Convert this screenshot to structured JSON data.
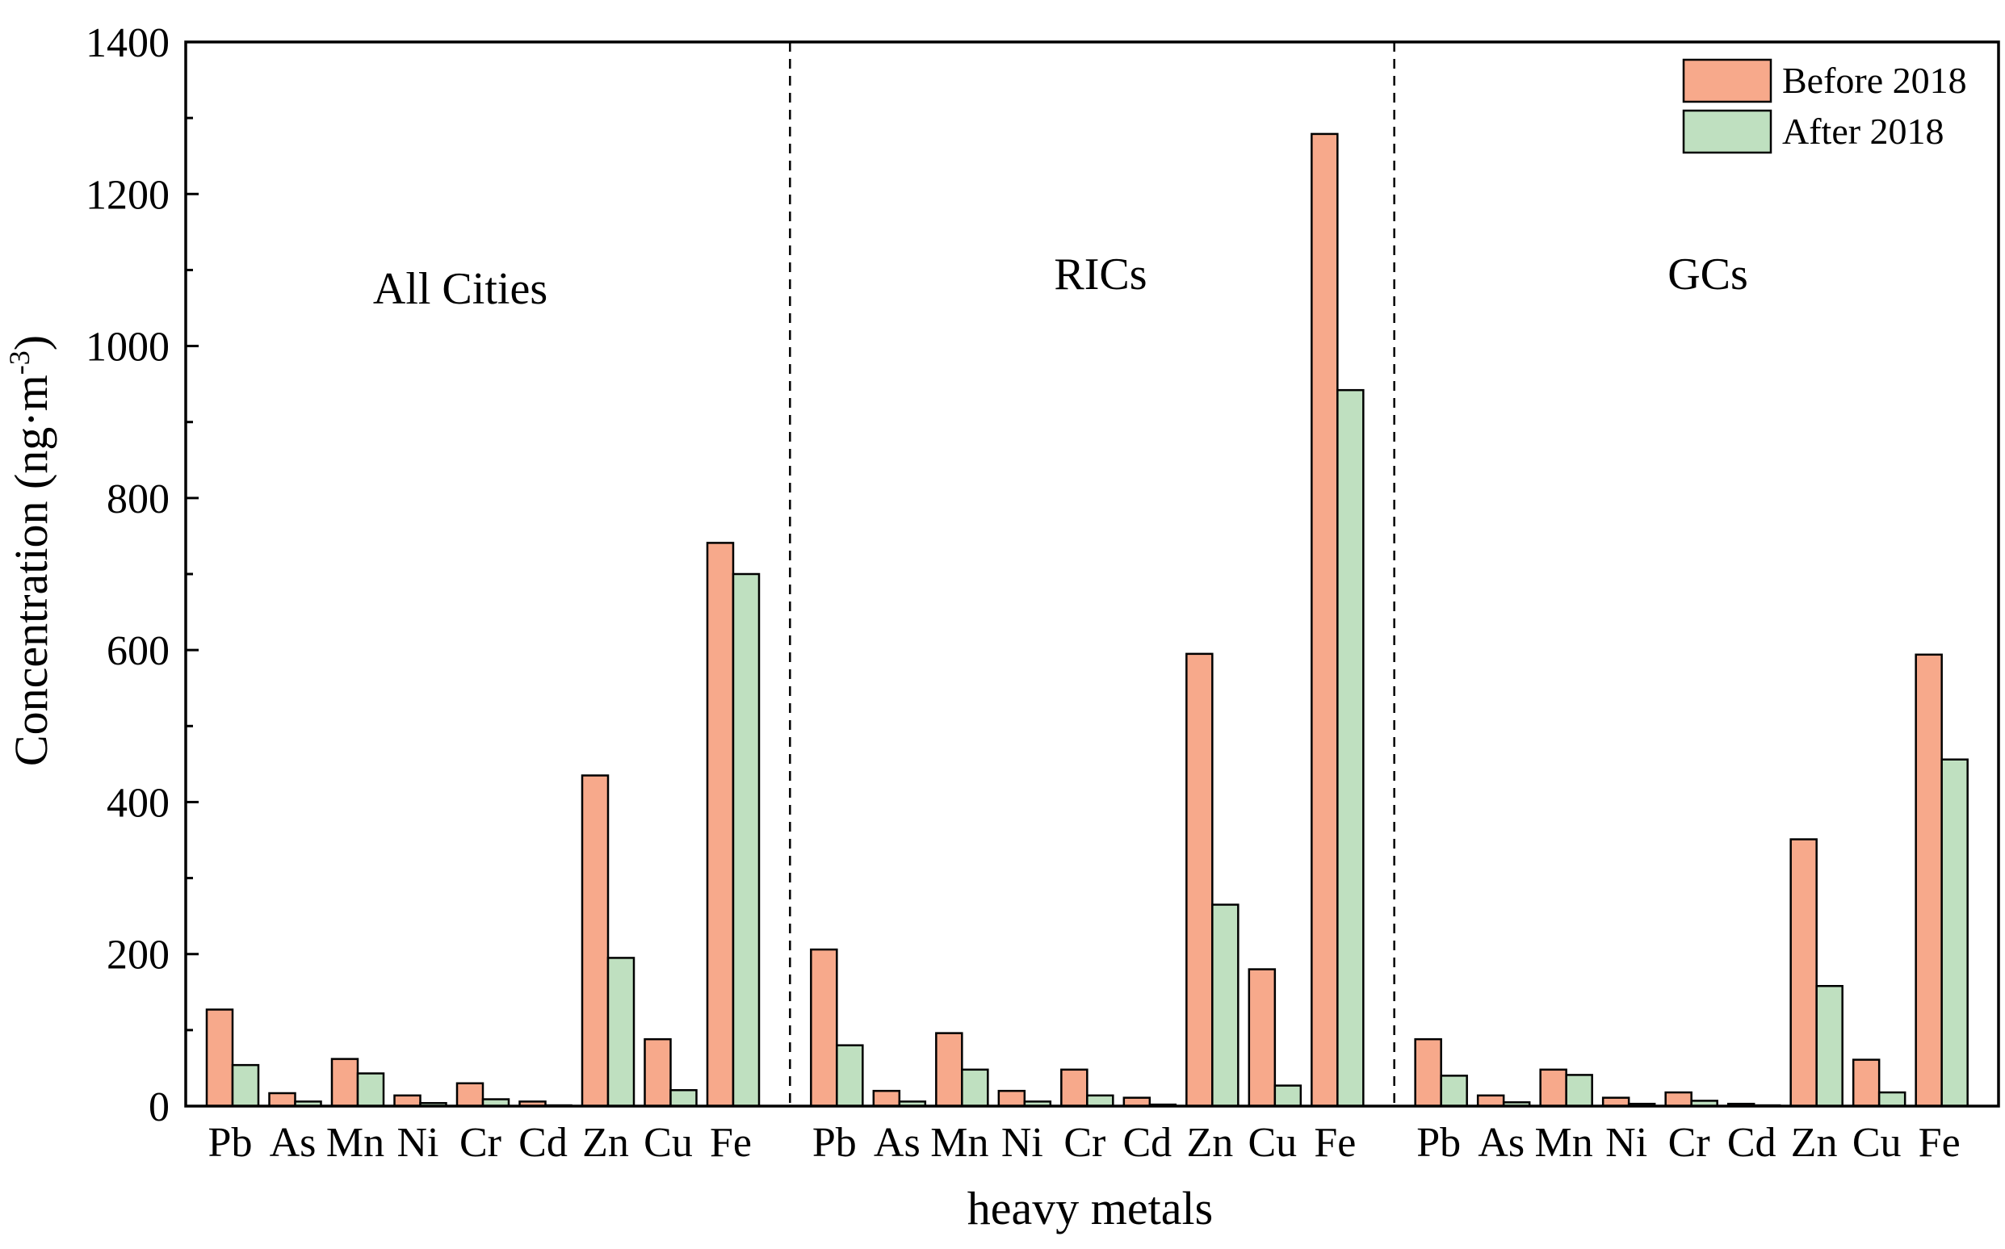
{
  "chart_data": {
    "type": "bar",
    "title": "",
    "xlabel": "heavy metals",
    "ylabel": "Concentration (ng·m",
    "ylabel_sup": "-3",
    "ylabel_close": ")",
    "ylim": [
      0,
      1400
    ],
    "yticks": [
      0,
      200,
      400,
      600,
      800,
      1000,
      1200,
      1400
    ],
    "legend_position": "top-right",
    "colors": {
      "Before 2018": "#f7a98b",
      "After 2018": "#bfe0c0"
    },
    "groups": [
      {
        "name": "All Cities",
        "categories": [
          "Pb",
          "As",
          "Mn",
          "Ni",
          "Cr",
          "Cd",
          "Zn",
          "Cu",
          "Fe"
        ],
        "series": [
          {
            "name": "Before 2018",
            "values": [
              127,
              17,
              62,
              14,
              30,
              6,
              435,
              88,
              741
            ]
          },
          {
            "name": "After 2018",
            "values": [
              54,
              6,
              43,
              4,
              9,
              1,
              195,
              21,
              700
            ]
          }
        ]
      },
      {
        "name": "RICs",
        "categories": [
          "Pb",
          "As",
          "Mn",
          "Ni",
          "Cr",
          "Cd",
          "Zn",
          "Cu",
          "Fe"
        ],
        "series": [
          {
            "name": "Before 2018",
            "values": [
              206,
              20,
              96,
              20,
              48,
              11,
              595,
              180,
              1279
            ]
          },
          {
            "name": "After 2018",
            "values": [
              80,
              6,
              48,
              6,
              14,
              2,
              265,
              27,
              942
            ]
          }
        ]
      },
      {
        "name": "GCs",
        "categories": [
          "Pb",
          "As",
          "Mn",
          "Ni",
          "Cr",
          "Cd",
          "Zn",
          "Cu",
          "Fe"
        ],
        "series": [
          {
            "name": "Before 2018",
            "values": [
              88,
              14,
              48,
              11,
              18,
              3,
              351,
              61,
              594
            ]
          },
          {
            "name": "After 2018",
            "values": [
              40,
              5,
              41,
              3,
              7,
              1,
              158,
              18,
              456
            ]
          }
        ]
      }
    ]
  }
}
